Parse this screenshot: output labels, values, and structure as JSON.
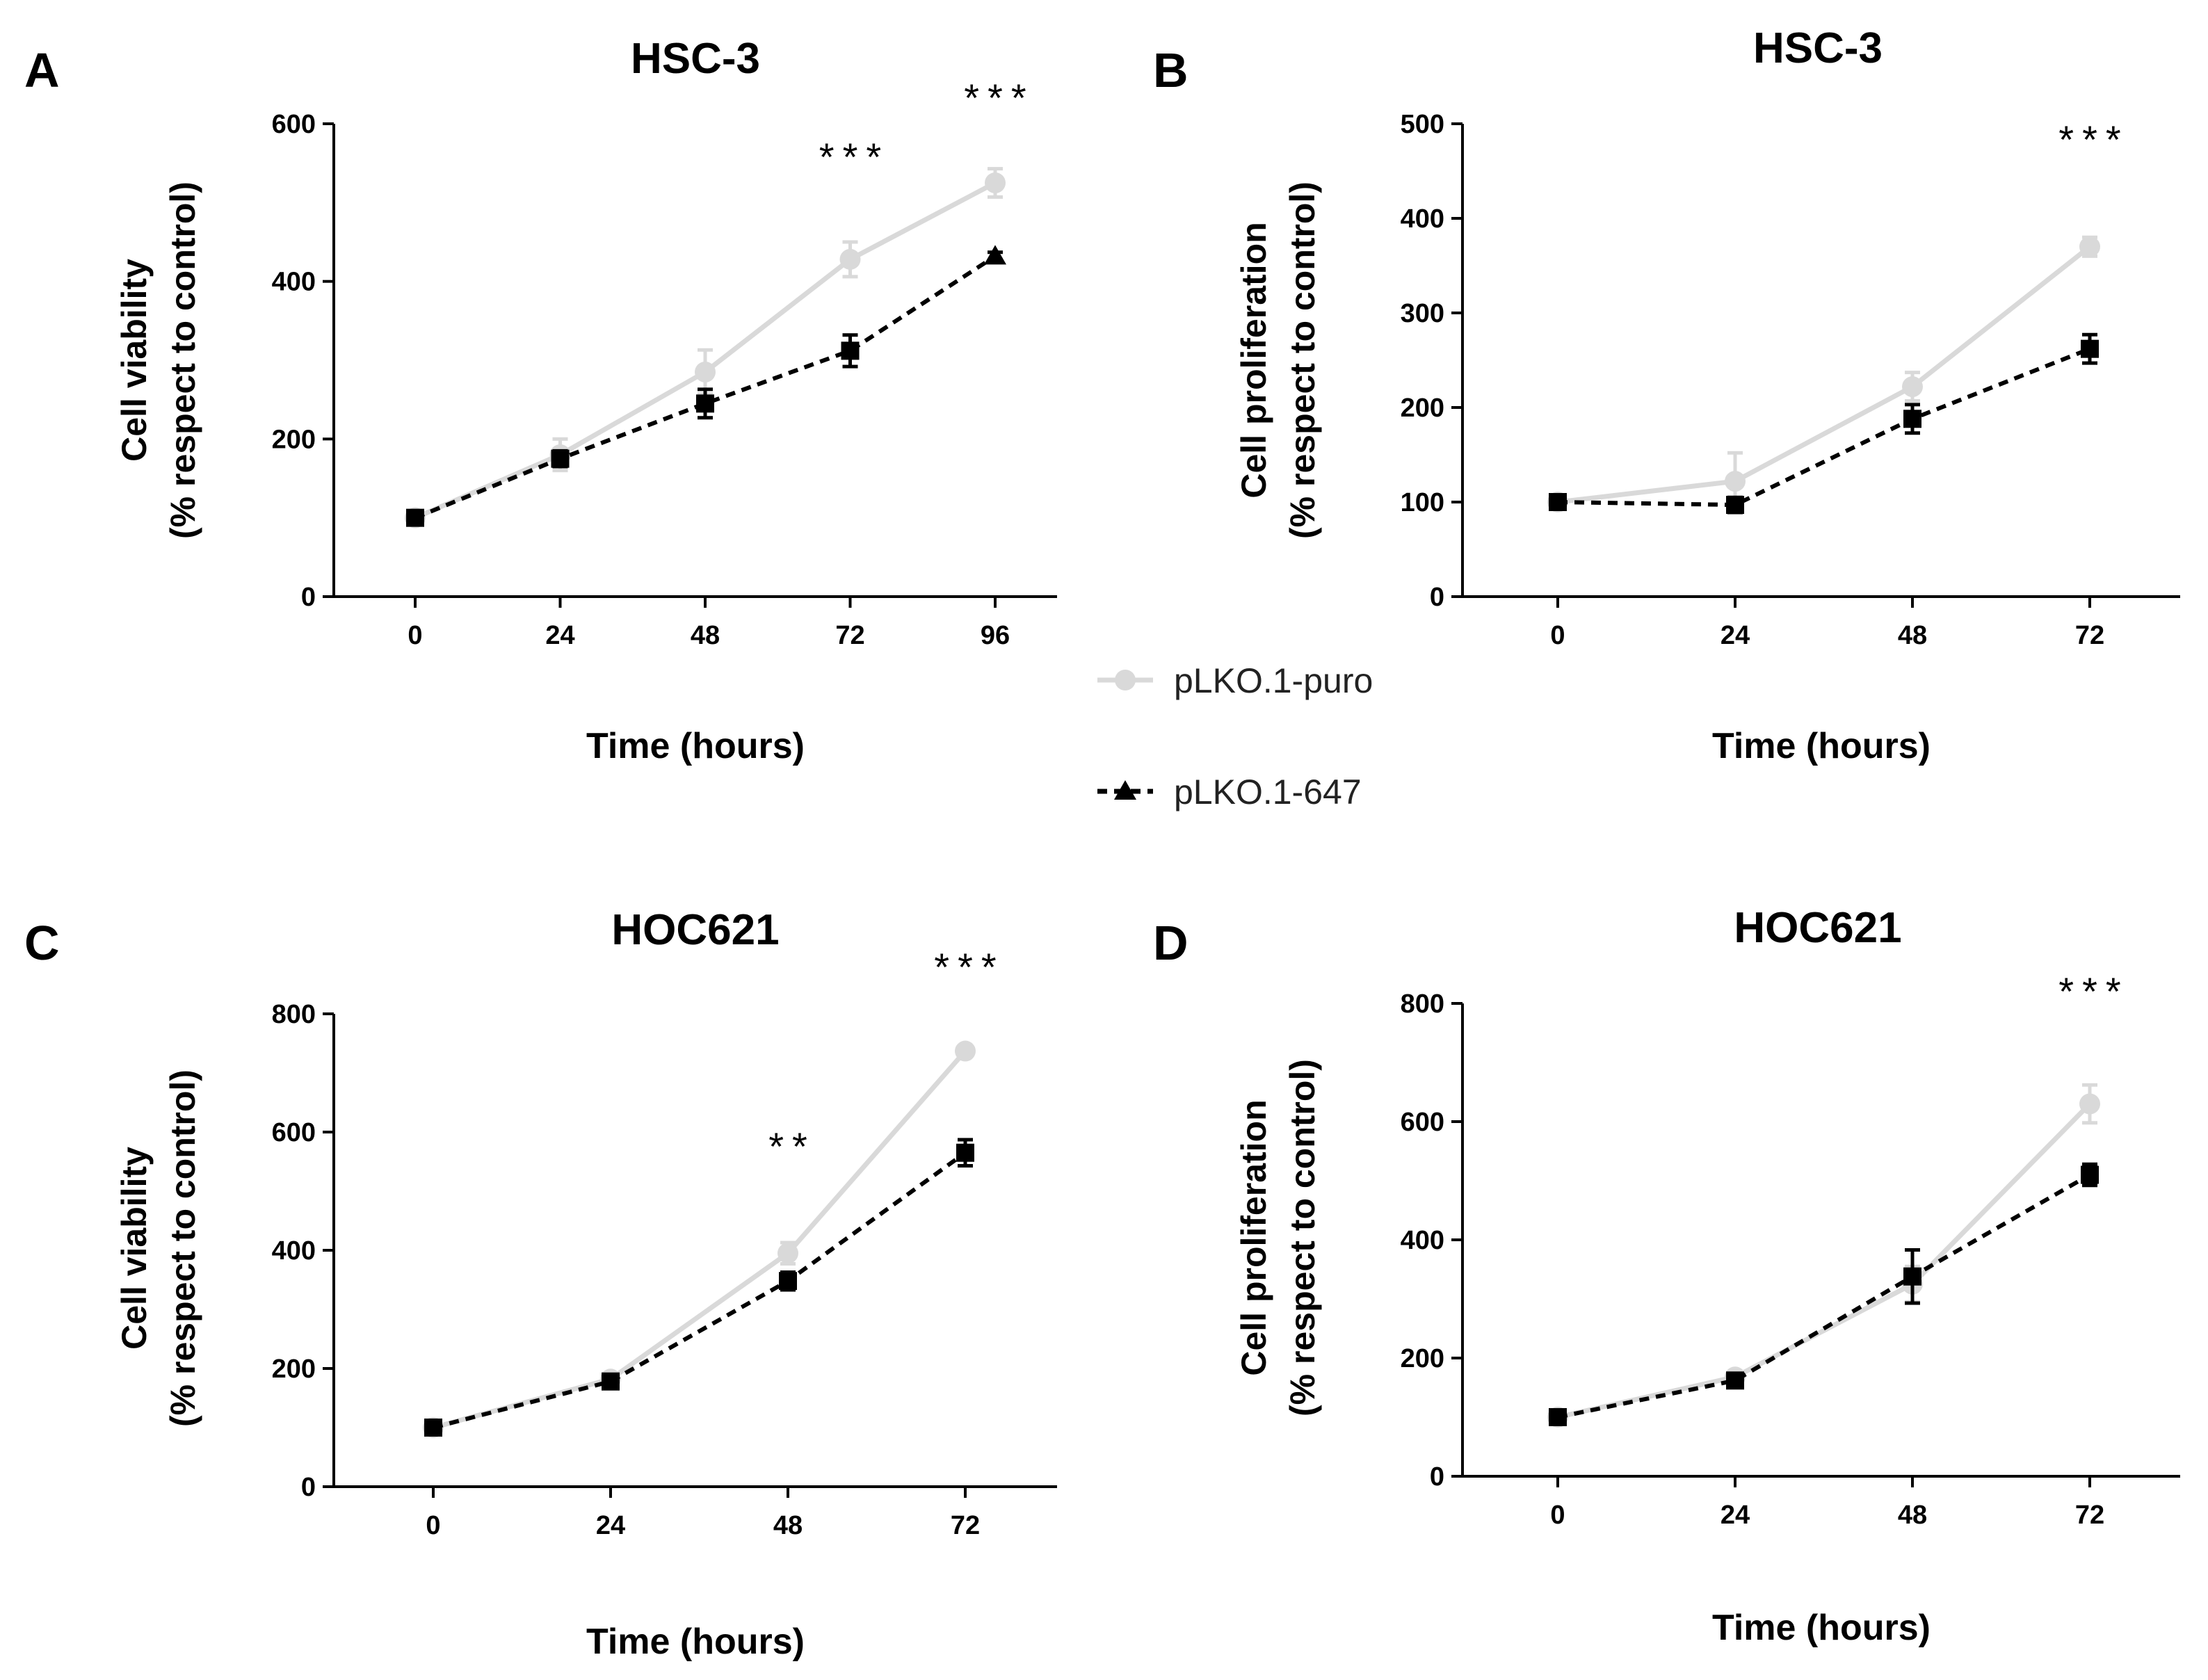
{
  "legend": {
    "series": [
      {
        "name": "pLKO.1-puro",
        "color": "#d9d9d9",
        "marker": "circle",
        "dash": "solid"
      },
      {
        "name": "pLKO.1-647",
        "color": "#000000",
        "marker": "triangle",
        "dash": "dashed"
      }
    ]
  },
  "chart_data": [
    {
      "panel": "A",
      "type": "line",
      "title": "HSC-3",
      "xlabel": "Time (hours)",
      "ylabel": [
        "Cell viability",
        "(% respect to control)"
      ],
      "x": [
        0,
        24,
        48,
        72,
        96
      ],
      "ylim": [
        0,
        600
      ],
      "yticks": [
        0,
        200,
        400,
        600
      ],
      "series": [
        {
          "name": "pLKO.1-puro",
          "values": [
            100,
            180,
            285,
            428,
            525
          ],
          "errors": [
            5,
            20,
            28,
            22,
            18
          ]
        },
        {
          "name": "pLKO.1-647",
          "values": [
            100,
            175,
            245,
            312,
            432
          ],
          "errors": [
            5,
            10,
            18,
            20,
            5
          ]
        }
      ],
      "annotations": [
        {
          "x": 72,
          "text": "***"
        },
        {
          "x": 96,
          "text": "***"
        }
      ]
    },
    {
      "panel": "B",
      "type": "line",
      "title": "HSC-3",
      "xlabel": "Time (hours)",
      "ylabel": [
        "Cell proliferation",
        "(% respect to control)"
      ],
      "x": [
        0,
        24,
        48,
        72
      ],
      "ylim": [
        0,
        500
      ],
      "yticks": [
        0,
        100,
        200,
        300,
        400,
        500
      ],
      "series": [
        {
          "name": "pLKO.1-puro",
          "values": [
            100,
            122,
            222,
            370
          ],
          "errors": [
            5,
            30,
            15,
            10
          ]
        },
        {
          "name": "pLKO.1-647",
          "values": [
            100,
            97,
            188,
            262
          ],
          "errors": [
            5,
            8,
            15,
            15
          ]
        }
      ],
      "annotations": [
        {
          "x": 72,
          "text": "***"
        }
      ]
    },
    {
      "panel": "C",
      "type": "line",
      "title": "HOC621",
      "xlabel": "Time (hours)",
      "ylabel": [
        "Cell viability",
        "(% respect to control)"
      ],
      "x": [
        0,
        24,
        48,
        72
      ],
      "ylim": [
        0,
        800
      ],
      "yticks": [
        0,
        200,
        400,
        600,
        800
      ],
      "series": [
        {
          "name": "pLKO.1-puro",
          "values": [
            100,
            182,
            395,
            737
          ],
          "errors": [
            5,
            8,
            18,
            8
          ]
        },
        {
          "name": "pLKO.1-647",
          "values": [
            100,
            178,
            348,
            565
          ],
          "errors": [
            5,
            8,
            15,
            22
          ]
        }
      ],
      "annotations": [
        {
          "x": 48,
          "text": "**"
        },
        {
          "x": 72,
          "text": "***"
        }
      ]
    },
    {
      "panel": "D",
      "type": "line",
      "title": "HOC621",
      "xlabel": "Time (hours)",
      "ylabel": [
        "Cell proliferation",
        "(% respect to control)"
      ],
      "x": [
        0,
        24,
        48,
        72
      ],
      "ylim": [
        0,
        800
      ],
      "yticks": [
        0,
        200,
        400,
        600,
        800
      ],
      "series": [
        {
          "name": "pLKO.1-puro",
          "values": [
            100,
            168,
            325,
            630
          ],
          "errors": [
            5,
            8,
            30,
            32
          ]
        },
        {
          "name": "pLKO.1-647",
          "values": [
            100,
            162,
            338,
            510
          ],
          "errors": [
            5,
            8,
            45,
            18
          ]
        }
      ],
      "annotations": [
        {
          "x": 72,
          "text": "***"
        }
      ]
    }
  ]
}
